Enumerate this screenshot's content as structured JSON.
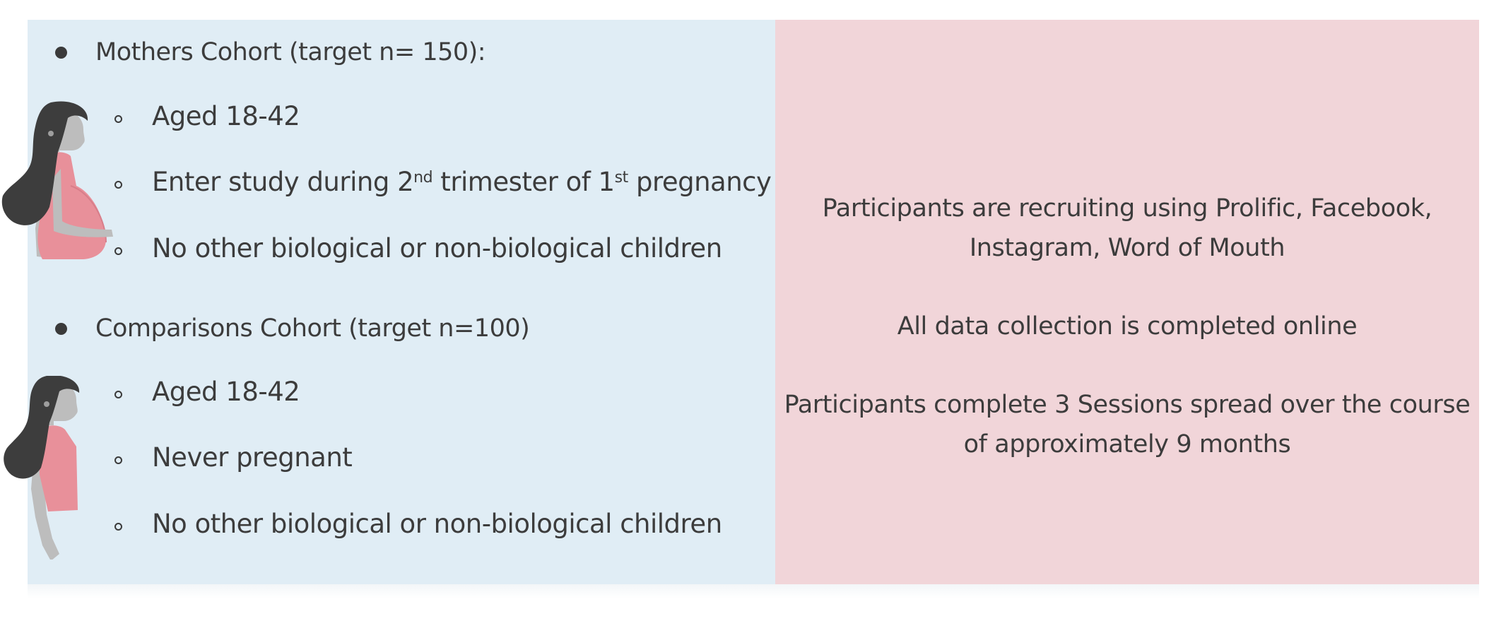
{
  "mothers_cohort": {
    "heading": "Mothers Cohort (target n= 150):",
    "criteria": {
      "age": "Aged 18-42",
      "timing_pre": "Enter study during 2",
      "timing_sup1": "nd",
      "timing_mid": " trimester of 1",
      "timing_sup2": "st",
      "timing_post": " pregnancy",
      "children": "No other biological or non-biological children"
    }
  },
  "comparisons_cohort": {
    "heading": "Comparisons Cohort (target n=100)",
    "criteria": {
      "age": "Aged 18-42",
      "pregnancy": "Never pregnant",
      "children": "No other biological or non-biological children"
    }
  },
  "info": {
    "recruiting_line1": "Participants are recruiting using Prolific, Facebook,",
    "recruiting_line2": "Instagram, Word of Mouth",
    "online": "All data collection is completed online",
    "sessions_line1": "Participants complete 3 Sessions spread over the course",
    "sessions_line2": "of approximately 9 months"
  },
  "colors": {
    "left_panel": "#e0edf5",
    "right_panel": "#f1d5d9",
    "figure_hair": "#3d3d3d",
    "figure_skin": "#bdbdbd",
    "figure_shirt": "#e8909a"
  },
  "icons": {
    "pregnant_figure": "pregnant-woman-icon",
    "comparison_figure": "woman-icon"
  }
}
